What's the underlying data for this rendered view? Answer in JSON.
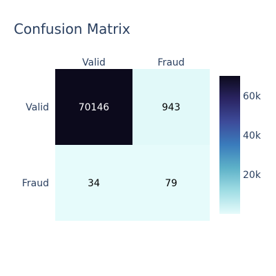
{
  "title": "Confusion Matrix",
  "chart_data": {
    "type": "heatmap",
    "title": "Confusion Matrix",
    "x_categories": [
      "Valid",
      "Fraud"
    ],
    "y_categories": [
      "Valid",
      "Fraud"
    ],
    "z": [
      [
        70146,
        943
      ],
      [
        34,
        79
      ]
    ],
    "colorscale": [
      "#e6fbfb",
      "#a0dde4",
      "#5db1c8",
      "#3a7cbc",
      "#3d4b9a",
      "#2a2462",
      "#0c0a1c"
    ],
    "colorbar": {
      "tick_values": [
        20000,
        40000,
        60000
      ],
      "tick_labels": [
        "20k",
        "40k",
        "60k"
      ],
      "range": [
        34,
        70146
      ]
    },
    "text_color_dark": "#000000",
    "text_color_light": "#ffffff",
    "label_color": "#2a3f5f"
  }
}
